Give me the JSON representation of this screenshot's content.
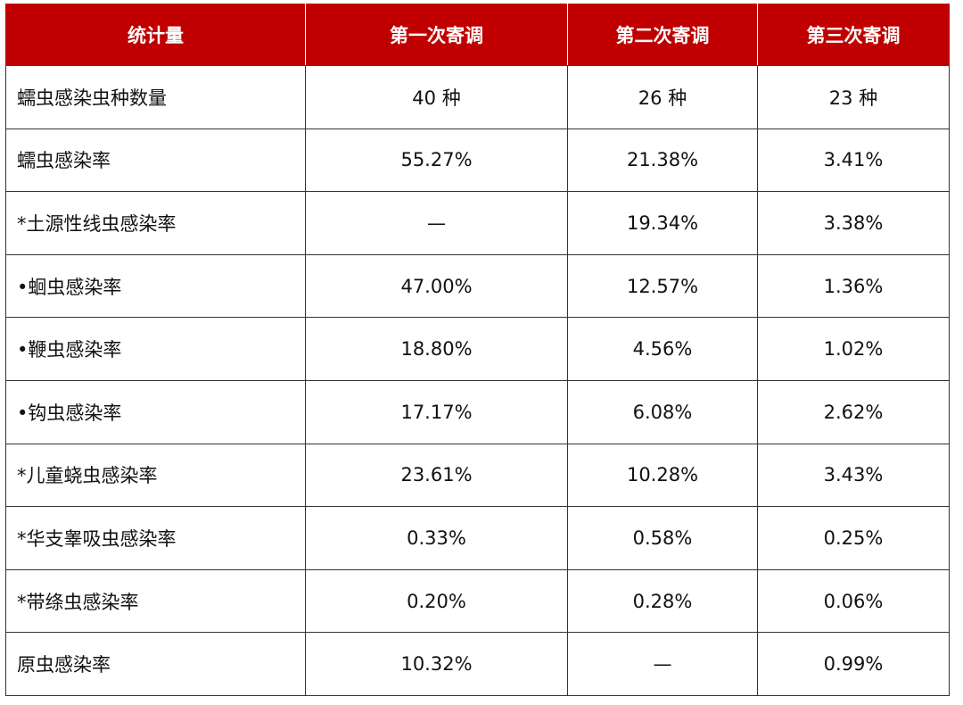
{
  "header": [
    "统计量",
    "第一次寄调",
    "第二次寄调",
    "第三次寄调"
  ],
  "rows": [
    {
      "label": "蠕虫感染虫种数量",
      "values": [
        "40 种",
        "26 种",
        "23 种"
      ]
    },
    {
      "label": "蠕虫感染率",
      "values": [
        "55.27%",
        "21.38%",
        "3.41%"
      ]
    },
    {
      "label": "*土源性线虫感染率",
      "values": [
        "—",
        "19.34%",
        "3.38%"
      ]
    },
    {
      "label": "•蛔虫感染率",
      "values": [
        "47.00%",
        "12.57%",
        "1.36%"
      ]
    },
    {
      "label": "•鞭虫感染率",
      "values": [
        "18.80%",
        "4.56%",
        "1.02%"
      ]
    },
    {
      "label": "•钩虫感染率",
      "values": [
        "17.17%",
        "6.08%",
        "2.62%"
      ]
    },
    {
      "label": "*儿童蛲虫感染率",
      "values": [
        "23.61%",
        "10.28%",
        "3.43%"
      ]
    },
    {
      "label": "*华支睾吸虫感染率",
      "values": [
        "0.33%",
        "0.58%",
        "0.25%"
      ]
    },
    {
      "label": "*带绦虫感染率",
      "values": [
        "0.20%",
        "0.28%",
        "0.06%"
      ]
    },
    {
      "label": "原虫感染率",
      "values": [
        "10.32%",
        "—",
        "0.99%"
      ]
    }
  ],
  "colors": {
    "header_bg": "#c00000",
    "header_text": "#ffffff"
  }
}
